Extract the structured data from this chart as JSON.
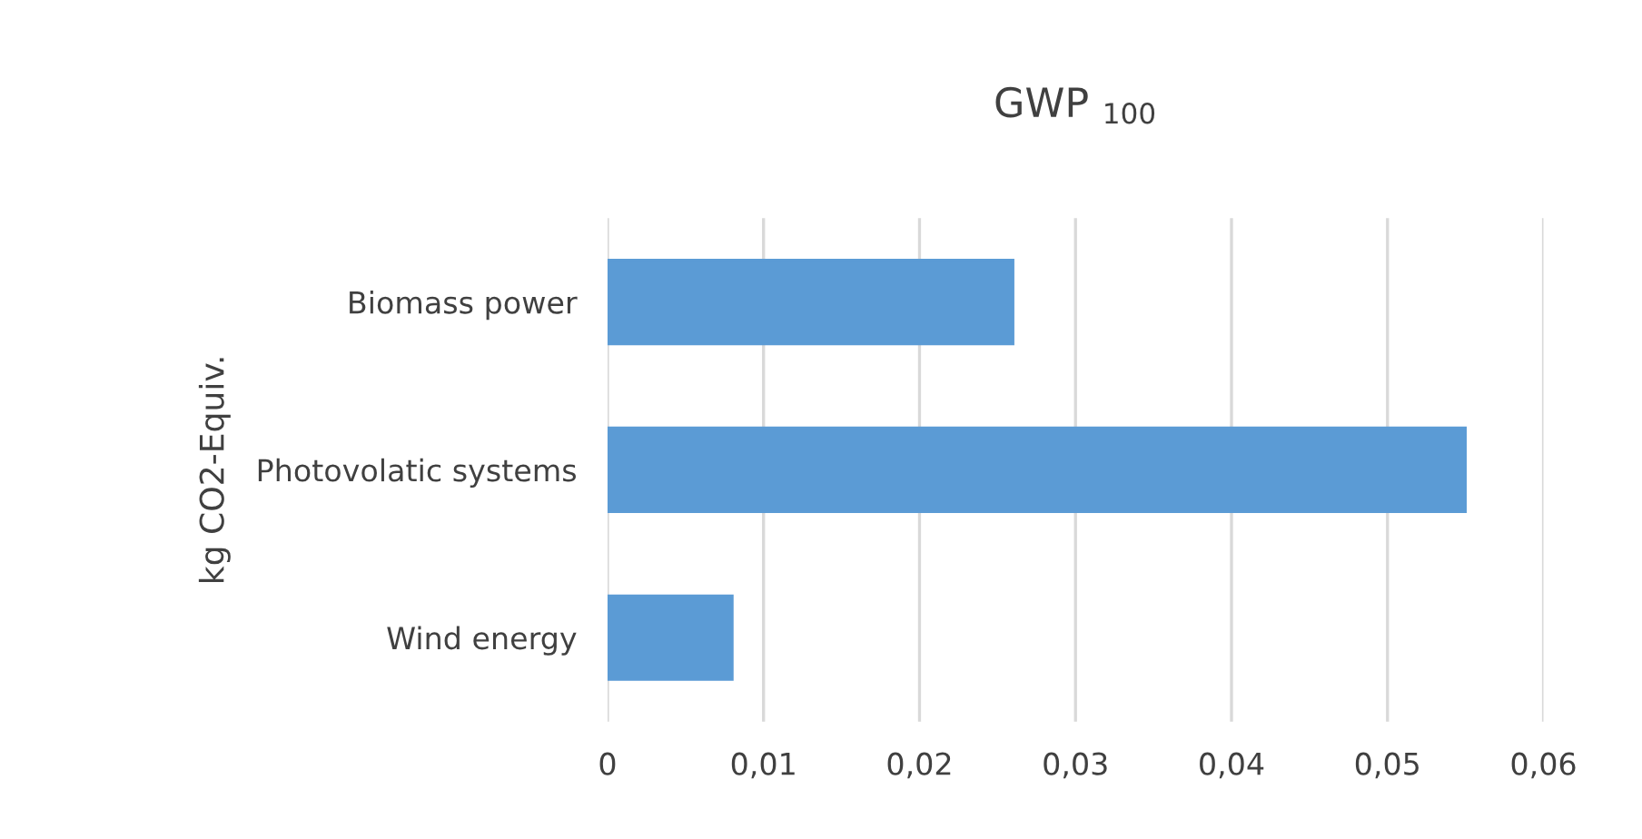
{
  "chart_data": {
    "type": "bar",
    "orientation": "horizontal",
    "title": "GWP $_{100}$",
    "ylabel": "kg CO2-Equiv.",
    "categories": [
      "Biomass power",
      "Photovolatic systems",
      "Wind energy"
    ],
    "values": [
      0.026,
      0.055,
      0.008
    ],
    "color": "#5b9bd5",
    "xlim": [
      0,
      0.06
    ],
    "xticks": [
      {
        "value": 0,
        "label": "0"
      },
      {
        "value": 0.01,
        "label": "0,01"
      },
      {
        "value": 0.02,
        "label": "0,02"
      },
      {
        "value": 0.03,
        "label": "0,03"
      },
      {
        "value": 0.04,
        "label": "0,04"
      },
      {
        "value": 0.05,
        "label": "0,05"
      },
      {
        "value": 0.06,
        "label": "0,06"
      }
    ],
    "grid": "x"
  }
}
